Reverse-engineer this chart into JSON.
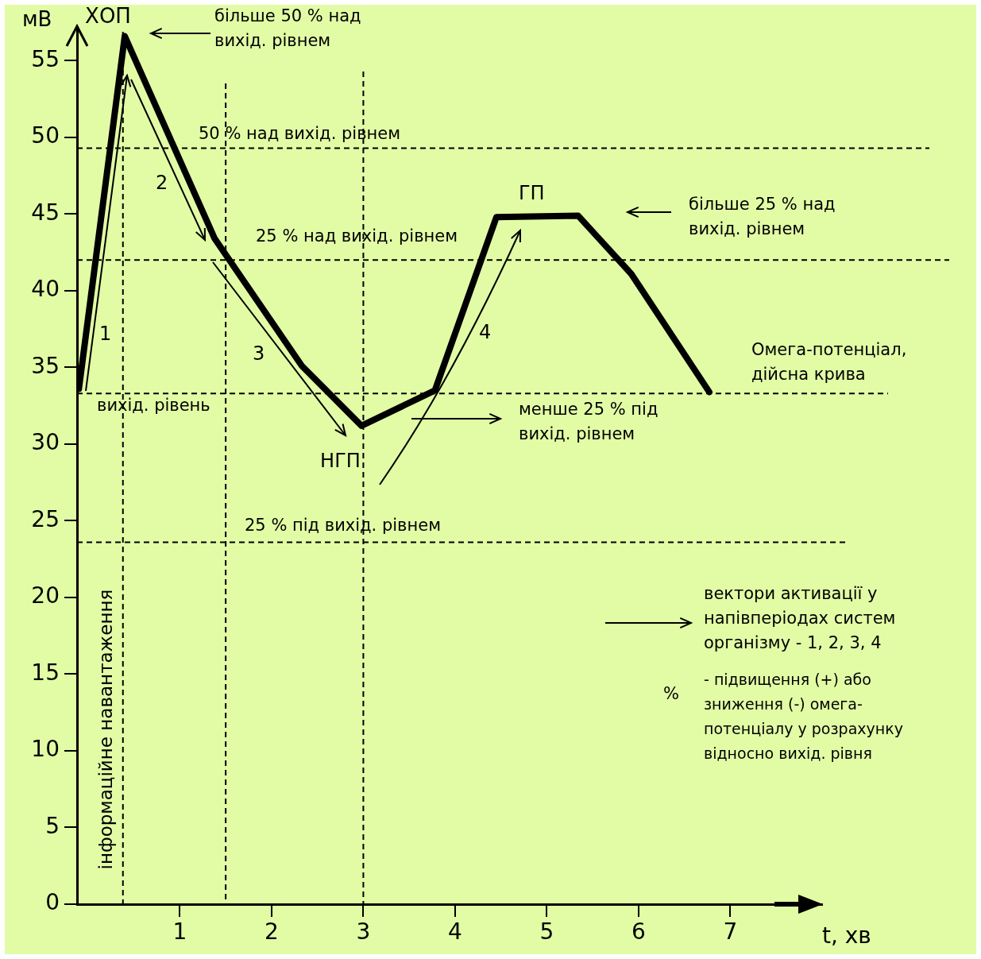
{
  "chart_data": {
    "type": "line",
    "ylabel": "мВ",
    "xlabel": "t, хв",
    "x": [
      -0.1,
      0.4,
      1.38,
      2.33,
      2.98,
      3.78,
      4.45,
      5.34,
      5.92,
      6.77
    ],
    "series": [
      {
        "color": "#000000",
        "values": [
          33.6,
          56.6,
          43.4,
          35.1,
          31.2,
          33.5,
          44.8,
          44.9,
          41.1,
          33.4
        ]
      }
    ],
    "xlim": [
      -0.12,
      8
    ],
    "ylim": [
      0,
      57.2
    ],
    "xticks": [
      1,
      2,
      3,
      4,
      5,
      6,
      7
    ],
    "yticks": [
      0,
      5,
      10,
      15,
      20,
      25,
      30,
      35,
      40,
      45,
      50,
      55
    ],
    "grid": false,
    "legend": false,
    "marker": "none",
    "line_style": "solid",
    "ref_lines": [
      {
        "axis": "y",
        "value": 49.3,
        "label": "50 % над вихід. рівнем",
        "line_style": "dashed",
        "color": "#000000"
      },
      {
        "axis": "y",
        "value": 42,
        "label": "25 % над вихід. рівнем",
        "line_style": "dashed",
        "color": "#000000"
      },
      {
        "axis": "y",
        "value": 33.3,
        "label": "вихід. рівень",
        "line_style": "dashed",
        "color": "#000000"
      },
      {
        "axis": "y",
        "value": 23.6,
        "label": "25 % під вихід. рівнем",
        "line_style": "dashed",
        "color": "#000000"
      },
      {
        "axis": "x",
        "value": 0.38,
        "label": "інформаційне навантаження",
        "line_style": "dashed",
        "color": "#000000"
      },
      {
        "axis": "x",
        "value": 1.5,
        "line_style": "dashed",
        "color": "#000000"
      },
      {
        "axis": "x",
        "value": 3,
        "line_style": "dashed",
        "color": "#000000"
      }
    ],
    "annotations": [
      {
        "text": "ХОП",
        "x": 0.4,
        "y": 56.6
      },
      "більше 50 % над вихід. рівнем",
      "1",
      "2",
      "3",
      "4",
      {
        "text": "НГП",
        "x": 2.98,
        "y": 31.2
      },
      {
        "text": "ГП",
        "x": 4.9,
        "y": 44.9
      },
      "Омега-потенціал, дійсна крива",
      "більше 25 % над вихід. рівнем",
      "менше 25 % під вихід. рівнем",
      "вектори активації у напівперіодах систем організму - 1, 2, 3, 4",
      "%",
      "- підвищення (+) або зниження (-) омега-потенціалу у розрахунку відносно вихід. рівня"
    ]
  }
}
